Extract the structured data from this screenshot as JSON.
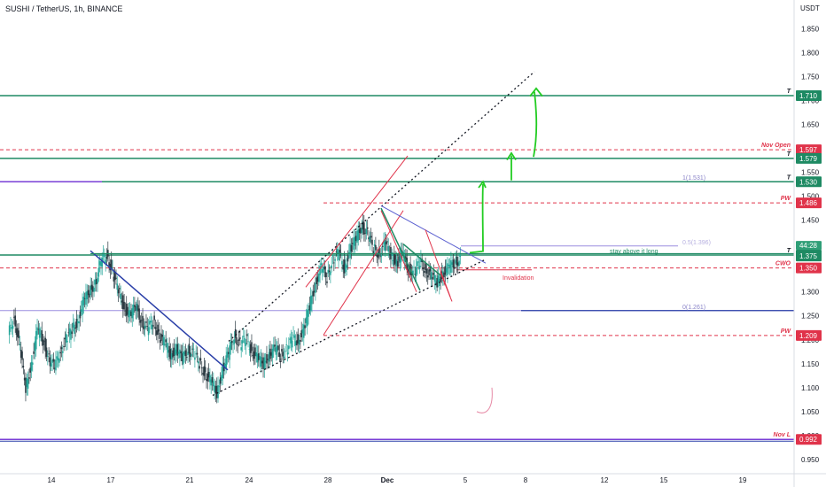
{
  "header": {
    "title": "SUSHI / TetherUS, 1h, BINANCE"
  },
  "currency": "USDT",
  "colors": {
    "green": "#1e8a63",
    "red": "#e0334a",
    "blue": "#2a3fa8",
    "purple": "#7a3fd6",
    "lavender": "#9c8ee0",
    "bright_green": "#22cc22",
    "pink": "#e06b8f",
    "dark": "#131722"
  },
  "chart_data": {
    "type": "line",
    "symbol": "SUSHI / TetherUS",
    "timeframe": "1h",
    "exchange": "BINANCE",
    "ylim": [
      0.925,
      1.875
    ],
    "y_ticks": [
      "1.850",
      "1.800",
      "1.750",
      "1.700",
      "1.650",
      "1.600",
      "1.550",
      "1.500",
      "1.450",
      "1.400",
      "1.350",
      "1.300",
      "1.250",
      "1.200",
      "1.150",
      "1.100",
      "1.050",
      "1.000",
      "0.950"
    ],
    "x_ticks": [
      "14",
      "17",
      "21",
      "24",
      "28",
      "Dec",
      "5",
      "8",
      "12",
      "15",
      "19"
    ],
    "series": [
      {
        "values": [
          1.21,
          1.25,
          1.18,
          1.1,
          1.15,
          1.22,
          1.2,
          1.16,
          1.14,
          1.18,
          1.2,
          1.22,
          1.24,
          1.28,
          1.3,
          1.32,
          1.36,
          1.38,
          1.34,
          1.3,
          1.27,
          1.25,
          1.27,
          1.24,
          1.22,
          1.24,
          1.21,
          1.19,
          1.17,
          1.18,
          1.16,
          1.18,
          1.17,
          1.15,
          1.13,
          1.11,
          1.09,
          1.14,
          1.17,
          1.21,
          1.19,
          1.2,
          1.18,
          1.16,
          1.15,
          1.17,
          1.18,
          1.17,
          1.18,
          1.2,
          1.2,
          1.22,
          1.27,
          1.32,
          1.35,
          1.33,
          1.37,
          1.38,
          1.35,
          1.39,
          1.41,
          1.44,
          1.42,
          1.39,
          1.38,
          1.4,
          1.38,
          1.36,
          1.38,
          1.35,
          1.34,
          1.36,
          1.35,
          1.33,
          1.32,
          1.34,
          1.35,
          1.36,
          1.37
        ]
      }
    ],
    "levels": [
      {
        "label": "T",
        "price": "1.710",
        "color": "green"
      },
      {
        "label": "Nov Open",
        "price": "1.597",
        "color": "red"
      },
      {
        "label": "T",
        "price": "1.579",
        "color": "green"
      },
      {
        "label": "T",
        "price": "1.530",
        "color": "green"
      },
      {
        "label": "PW",
        "price": "1.486",
        "color": "red"
      },
      {
        "label": "T",
        "price": "1.377",
        "color": "green"
      },
      {
        "label": "CWO",
        "price": "1.350",
        "color": "red"
      },
      {
        "label": "PW",
        "price": "1.209",
        "color": "red"
      },
      {
        "label": "Nov L",
        "price": "0.992",
        "color": "red"
      }
    ],
    "current": {
      "price": "1.375",
      "countdown": "44:28"
    },
    "annotations": {
      "fib_1": "1(1.531)",
      "fib_05": "0.5(1.396)",
      "fib_0": "0(1.261)",
      "stay_above": "stay above it long",
      "invalidation": "Invalidation"
    }
  }
}
